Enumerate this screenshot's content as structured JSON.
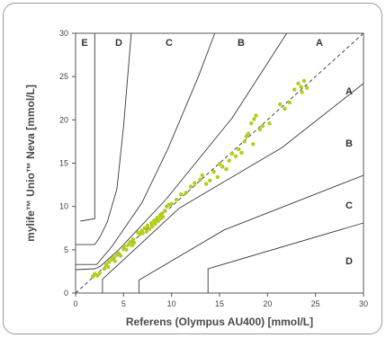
{
  "chart_data": {
    "type": "scatter",
    "title": "",
    "xlabel": "Referens (Olympus AU400) [mmol/L]",
    "ylabel": "mylife™ Unio™ Neva [mmol/L]",
    "xlim": [
      0,
      30
    ],
    "ylim": [
      0,
      30
    ],
    "xticks": [
      "0",
      "5",
      "10",
      "15",
      "20",
      "25",
      "30"
    ],
    "yticks": [
      "0",
      "5",
      "10",
      "15",
      "20",
      "25",
      "30"
    ],
    "grid": false,
    "point_color": "#b5cc1a",
    "zone_labels_top": [
      "E",
      "D",
      "C",
      "B",
      "A"
    ],
    "zone_labels_right": [
      "A",
      "B",
      "C",
      "D"
    ],
    "identity_line": true,
    "series": [
      {
        "values": [
          [
            1.8,
            1.9
          ],
          [
            2.0,
            2.2
          ],
          [
            2.3,
            2.0
          ],
          [
            2.5,
            2.3
          ],
          [
            3.0,
            2.8
          ],
          [
            3.2,
            3.3
          ],
          [
            3.4,
            3.0
          ],
          [
            3.5,
            3.6
          ],
          [
            3.8,
            3.9
          ],
          [
            4.0,
            4.1
          ],
          [
            4.1,
            3.7
          ],
          [
            4.3,
            4.4
          ],
          [
            4.5,
            4.6
          ],
          [
            4.7,
            4.3
          ],
          [
            5.0,
            5.1
          ],
          [
            5.1,
            5.4
          ],
          [
            5.3,
            5.0
          ],
          [
            5.5,
            5.6
          ],
          [
            5.7,
            5.9
          ],
          [
            5.9,
            5.5
          ],
          [
            6.0,
            6.2
          ],
          [
            6.1,
            5.8
          ],
          [
            6.5,
            7.0
          ],
          [
            6.7,
            6.8
          ],
          [
            6.9,
            7.2
          ],
          [
            7.0,
            6.9
          ],
          [
            7.2,
            7.5
          ],
          [
            7.4,
            7.1
          ],
          [
            7.5,
            7.8
          ],
          [
            7.7,
            7.4
          ],
          [
            7.9,
            8.1
          ],
          [
            8.0,
            7.7
          ],
          [
            8.2,
            8.4
          ],
          [
            8.3,
            8.0
          ],
          [
            8.5,
            8.7
          ],
          [
            8.6,
            8.3
          ],
          [
            8.8,
            9.0
          ],
          [
            8.9,
            8.6
          ],
          [
            9.0,
            9.2
          ],
          [
            9.1,
            8.8
          ],
          [
            9.3,
            9.5
          ],
          [
            9.5,
            10.0
          ],
          [
            9.7,
            10.2
          ],
          [
            10.0,
            10.3
          ],
          [
            10.5,
            10.8
          ],
          [
            11.0,
            11.4
          ],
          [
            11.5,
            11.6
          ],
          [
            12.0,
            12.3
          ],
          [
            12.4,
            12.7
          ],
          [
            13.0,
            13.1
          ],
          [
            13.2,
            13.6
          ],
          [
            13.6,
            12.6
          ],
          [
            14.0,
            13.0
          ],
          [
            14.4,
            14.0
          ],
          [
            14.8,
            13.4
          ],
          [
            15.0,
            14.9
          ],
          [
            15.3,
            14.6
          ],
          [
            15.7,
            14.3
          ],
          [
            16.0,
            15.3
          ],
          [
            16.3,
            16.1
          ],
          [
            16.7,
            15.8
          ],
          [
            17.0,
            16.6
          ],
          [
            17.3,
            16.2
          ],
          [
            17.6,
            17.5
          ],
          [
            17.8,
            18.1
          ],
          [
            18.0,
            18.4
          ],
          [
            18.3,
            19.6
          ],
          [
            18.6,
            20.1
          ],
          [
            18.8,
            20.5
          ],
          [
            18.5,
            17.2
          ],
          [
            19.2,
            18.9
          ],
          [
            19.5,
            19.3
          ],
          [
            20.2,
            19.6
          ],
          [
            21.3,
            21.8
          ],
          [
            21.8,
            21.3
          ],
          [
            22.3,
            22.0
          ],
          [
            22.8,
            23.5
          ],
          [
            23.2,
            24.2
          ],
          [
            23.5,
            23.8
          ],
          [
            23.8,
            24.5
          ],
          [
            24.1,
            23.7
          ],
          [
            23.6,
            23.2
          ]
        ]
      }
    ]
  }
}
